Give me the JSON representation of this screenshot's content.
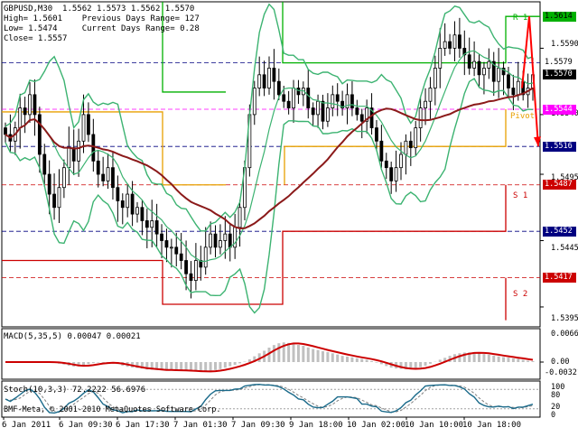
{
  "info": {
    "line1": "GBPUSD,M30  1.5562 1.5573 1.5562 1.5570",
    "line2": "High= 1.5601    Previous Days Range= 127",
    "line3": "Low= 1.5474     Current Days Range= 0.28",
    "line4": "Close= 1.5557"
  },
  "price_axis": {
    "ticks": [
      "1.5590",
      "1.5540",
      "1.5495",
      "1.5445",
      "1.5395"
    ],
    "tags": [
      {
        "text": "1.5614",
        "bg": "#00b000",
        "fg": "#000000",
        "value": 1.5614
      },
      {
        "text": "1.5579",
        "bg": "#ffffff",
        "fg": "#000000",
        "value": 1.5579
      },
      {
        "text": "1.5570",
        "bg": "#000000",
        "fg": "#ffffff",
        "value": 1.557
      },
      {
        "text": "1.5544",
        "bg": "#ff00ff",
        "fg": "#ffffff",
        "value": 1.5544
      },
      {
        "text": "1.5516",
        "bg": "#000080",
        "fg": "#ffffff",
        "value": 1.5516
      },
      {
        "text": "1.5487",
        "bg": "#cc0000",
        "fg": "#ffffff",
        "value": 1.5487
      },
      {
        "text": "1.5452",
        "bg": "#000080",
        "fg": "#ffffff",
        "value": 1.5452
      },
      {
        "text": "1.5417",
        "bg": "#cc0000",
        "fg": "#ffffff",
        "value": 1.5417
      }
    ]
  },
  "levels": {
    "r1": "R 1",
    "pivot": "Pivot",
    "s1": "S 1",
    "s2": "S 2"
  },
  "macd": {
    "title": "MACD(5,35,5) 0.00047 0.00021",
    "ticks": [
      "0.00666",
      "0.00",
      "-0.00321"
    ]
  },
  "stoch": {
    "title": "Stoch(10,3,3) 72.2222 56.6976",
    "ticks": [
      "100",
      "80",
      "20",
      "0"
    ]
  },
  "time_axis": [
    "6 Jan 2011",
    "6 Jan 09:30",
    "6 Jan 17:30",
    "7 Jan 01:30",
    "7 Jan 09:30",
    "9 Jan 18:00",
    "10 Jan 02:00",
    "10 Jan 10:00",
    "10 Jan 18:00"
  ],
  "copyright": "BMF-Meta, © 2001-2010 MetaQuotes Software Corp.",
  "colors": {
    "candle": "#000000",
    "bollinger": "#3cb371",
    "ma": "#8b1a1a",
    "r_lines": "#00b000",
    "pivot_line": "#e8a000",
    "s_lines": "#cc0000",
    "macd_hist": "#c0c0c0",
    "macd_signal": "#cc0000",
    "stoch_main": "#1a6a8a",
    "stoch_signal": "#808080"
  },
  "chart_data": {
    "type": "candlestick",
    "symbol": "GBPUSD",
    "timeframe": "M30",
    "ylim": [
      1.538,
      1.5625
    ],
    "close_series": [
      1.5525,
      1.552,
      1.553,
      1.5545,
      1.554,
      1.5555,
      1.554,
      1.551,
      1.5495,
      1.548,
      1.547,
      1.5485,
      1.55,
      1.5515,
      1.5505,
      1.552,
      1.554,
      1.5525,
      1.5505,
      1.5495,
      1.549,
      1.55,
      1.5485,
      1.5475,
      1.547,
      1.548,
      1.5465,
      1.547,
      1.546,
      1.5455,
      1.546,
      1.545,
      1.5445,
      1.544,
      1.544,
      1.5435,
      1.543,
      1.542,
      1.5415,
      1.543,
      1.5425,
      1.544,
      1.545,
      1.544,
      1.5445,
      1.545,
      1.544,
      1.5455,
      1.547,
      1.55,
      1.554,
      1.556,
      1.557,
      1.556,
      1.5575,
      1.5565,
      1.5555,
      1.555,
      1.5545,
      1.556,
      1.5555,
      1.556,
      1.5545,
      1.554,
      1.555,
      1.5535,
      1.5545,
      1.5555,
      1.555,
      1.5545,
      1.5555,
      1.5545,
      1.554,
      1.5535,
      1.5545,
      1.553,
      1.552,
      1.5505,
      1.55,
      1.549,
      1.55,
      1.551,
      1.552,
      1.5515,
      1.553,
      1.5545,
      1.555,
      1.556,
      1.5575,
      1.559,
      1.5595,
      1.559,
      1.56,
      1.559,
      1.5585,
      1.5575,
      1.558,
      1.557,
      1.5575,
      1.558,
      1.5565,
      1.5575,
      1.557,
      1.556,
      1.5555,
      1.5565,
      1.5555,
      1.556,
      1.557
    ]
  }
}
